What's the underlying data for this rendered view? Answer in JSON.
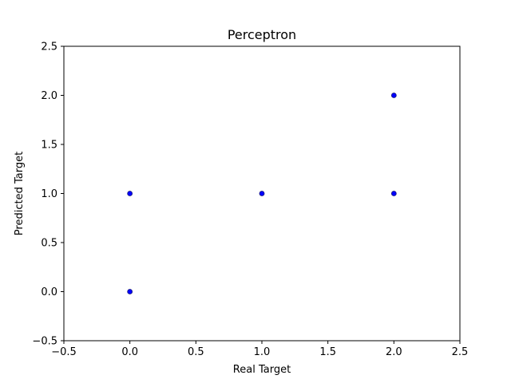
{
  "chart_data": {
    "type": "scatter",
    "title": "Perceptron",
    "xlabel": "Real Target",
    "ylabel": "Predicted Target",
    "xlim": [
      -0.5,
      2.5
    ],
    "ylim": [
      -0.5,
      2.5
    ],
    "xticks": [
      -0.5,
      0.0,
      0.5,
      1.0,
      1.5,
      2.0,
      2.5
    ],
    "yticks": [
      -0.5,
      0.0,
      0.5,
      1.0,
      1.5,
      2.0,
      2.5
    ],
    "xtick_labels": [
      "−0.5",
      "0.0",
      "0.5",
      "1.0",
      "1.5",
      "2.0",
      "2.5"
    ],
    "ytick_labels": [
      "−0.5",
      "0.0",
      "0.5",
      "1.0",
      "1.5",
      "2.0",
      "2.5"
    ],
    "grid": false,
    "marker_color": "#0000ff",
    "marker_edge_color": "#1f1f7a",
    "points": [
      {
        "x": 0,
        "y": 0
      },
      {
        "x": 0,
        "y": 1
      },
      {
        "x": 1,
        "y": 1
      },
      {
        "x": 2,
        "y": 1
      },
      {
        "x": 2,
        "y": 2
      }
    ]
  }
}
